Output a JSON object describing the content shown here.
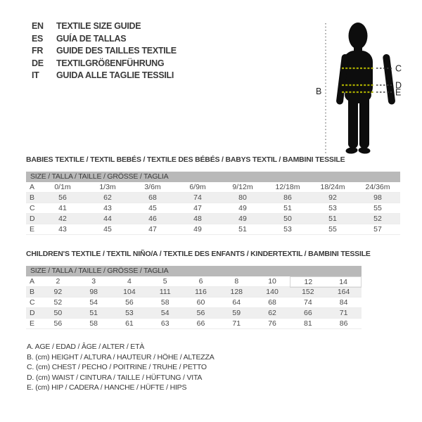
{
  "languages": [
    {
      "code": "EN",
      "label": "TEXTILE SIZE GUIDE"
    },
    {
      "code": "ES",
      "label": "GUÍA DE TALLAS"
    },
    {
      "code": "FR",
      "label": "GUIDE DES TAILLES TEXTILE"
    },
    {
      "code": "DE",
      "label": "TEXTILGRÖßENFÜHRUNG"
    },
    {
      "code": "IT",
      "label": "GUIDA ALLE TAGLIE TESSILI"
    }
  ],
  "figure": {
    "labels": {
      "height": "B",
      "chest": "C",
      "waist": "D",
      "hip": "E"
    },
    "dash_color_on_body": "#a8ab00",
    "dash_color_off_body": "#3f3f3f",
    "silhouette_color": "#0d0d0d"
  },
  "babies_section": {
    "title": "BABIES TEXTILE / TEXTIL BEBÉS / TEXTILE DES BÉBÉS / BABYS TEXTIL / BAMBINI TESSILE",
    "table": {
      "header": "SIZE / TALLA / TAILLE / GRÖSSE / TAGLIA",
      "rows": [
        {
          "label": "A",
          "values": [
            "0/1m",
            "1/3m",
            "3/6m",
            "6/9m",
            "9/12m",
            "12/18m",
            "18/24m",
            "24/36m"
          ]
        },
        {
          "label": "B",
          "values": [
            "56",
            "62",
            "68",
            "74",
            "80",
            "86",
            "92",
            "98"
          ]
        },
        {
          "label": "C",
          "values": [
            "41",
            "43",
            "45",
            "47",
            "49",
            "51",
            "53",
            "55"
          ]
        },
        {
          "label": "D",
          "values": [
            "42",
            "44",
            "46",
            "48",
            "49",
            "50",
            "51",
            "52"
          ]
        },
        {
          "label": "E",
          "values": [
            "43",
            "45",
            "47",
            "49",
            "51",
            "53",
            "55",
            "57"
          ]
        }
      ]
    }
  },
  "children_section": {
    "title": "CHILDREN'S TEXTILE / TEXTIL NIÑO/A / TEXTILE DES ENFANTS / KINDERTEXTIL / BAMBINI TESSILE",
    "table": {
      "header": "SIZE / TALLA / TAILLE / GRÖSSE / TAGLIA",
      "boxed": {
        "row": 0,
        "from": 7,
        "to": 8
      },
      "rows": [
        {
          "label": "A",
          "values": [
            "2",
            "3",
            "4",
            "5",
            "6",
            "8",
            "10",
            "12",
            "14"
          ]
        },
        {
          "label": "B",
          "values": [
            "92",
            "98",
            "104",
            "111",
            "116",
            "128",
            "140",
            "152",
            "164"
          ]
        },
        {
          "label": "C",
          "values": [
            "52",
            "54",
            "56",
            "58",
            "60",
            "64",
            "68",
            "74",
            "84"
          ]
        },
        {
          "label": "D",
          "values": [
            "50",
            "51",
            "53",
            "54",
            "56",
            "59",
            "62",
            "66",
            "71"
          ]
        },
        {
          "label": "E",
          "values": [
            "56",
            "58",
            "61",
            "63",
            "66",
            "71",
            "76",
            "81",
            "86"
          ]
        }
      ]
    }
  },
  "legend": [
    "A. AGE / EDAD / ÂGE / ALTER / ETÀ",
    "B. (cm) HEIGHT / ALTURA / HAUTEUR / HÖHE / ALTEZZA",
    "C. (cm) CHEST / PECHO / POITRINE / TRUHE / PETTO",
    "D. (cm) WAIST / CINTURA / TAILLE / HÜFTUNG / VITA",
    "E. (cm) HIP / CADERA / HANCHE / HÜFTE / HIPS"
  ],
  "colors": {
    "header_bar": "#b9b9b9",
    "stripe": "#efefef",
    "text": "#3c3c3c"
  }
}
